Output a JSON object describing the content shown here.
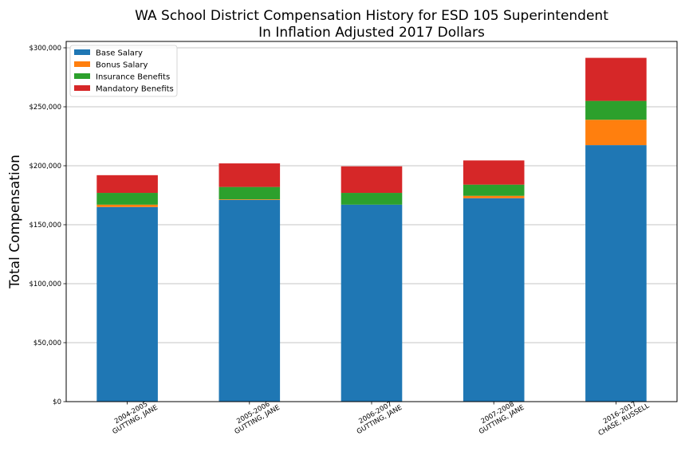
{
  "chart_data": {
    "type": "bar",
    "stacked": true,
    "title": "WA School District Compensation History for ESD 105 Superintendent",
    "subtitle": "In Inflation Adjusted 2017 Dollars",
    "xlabel": "",
    "ylabel": "Total Compensation",
    "ylim": [
      0,
      300000
    ],
    "yticks": [
      0,
      50000,
      100000,
      150000,
      200000,
      250000,
      300000
    ],
    "ytick_labels": [
      "$0",
      "$50,000",
      "$100,000",
      "$150,000",
      "$200,000",
      "$250,000",
      "$300,000"
    ],
    "grid": "horizontal",
    "legend_position": "top-left",
    "categories": [
      [
        "2004-2005",
        "GUTTING, JANE"
      ],
      [
        "2005-2006",
        "GUTTING, JANE"
      ],
      [
        "2006-2007",
        "GUTTING, JANE"
      ],
      [
        "2007-2008",
        "GUTTING, JANE"
      ],
      [
        "2016-2017",
        "CHASE, RUSSELL"
      ]
    ],
    "series": [
      {
        "name": "Base Salary",
        "color": "#1f77b4",
        "values": [
          165000,
          171000,
          167000,
          172500,
          217500
        ]
      },
      {
        "name": "Bonus Salary",
        "color": "#ff7f0e",
        "values": [
          2000,
          500,
          0,
          2000,
          21500
        ]
      },
      {
        "name": "Insurance Benefits",
        "color": "#2ca02c",
        "values": [
          10000,
          10500,
          10000,
          9500,
          16000
        ]
      },
      {
        "name": "Mandatory Benefits",
        "color": "#d62728",
        "values": [
          15000,
          20000,
          22500,
          20500,
          36500
        ]
      }
    ]
  }
}
